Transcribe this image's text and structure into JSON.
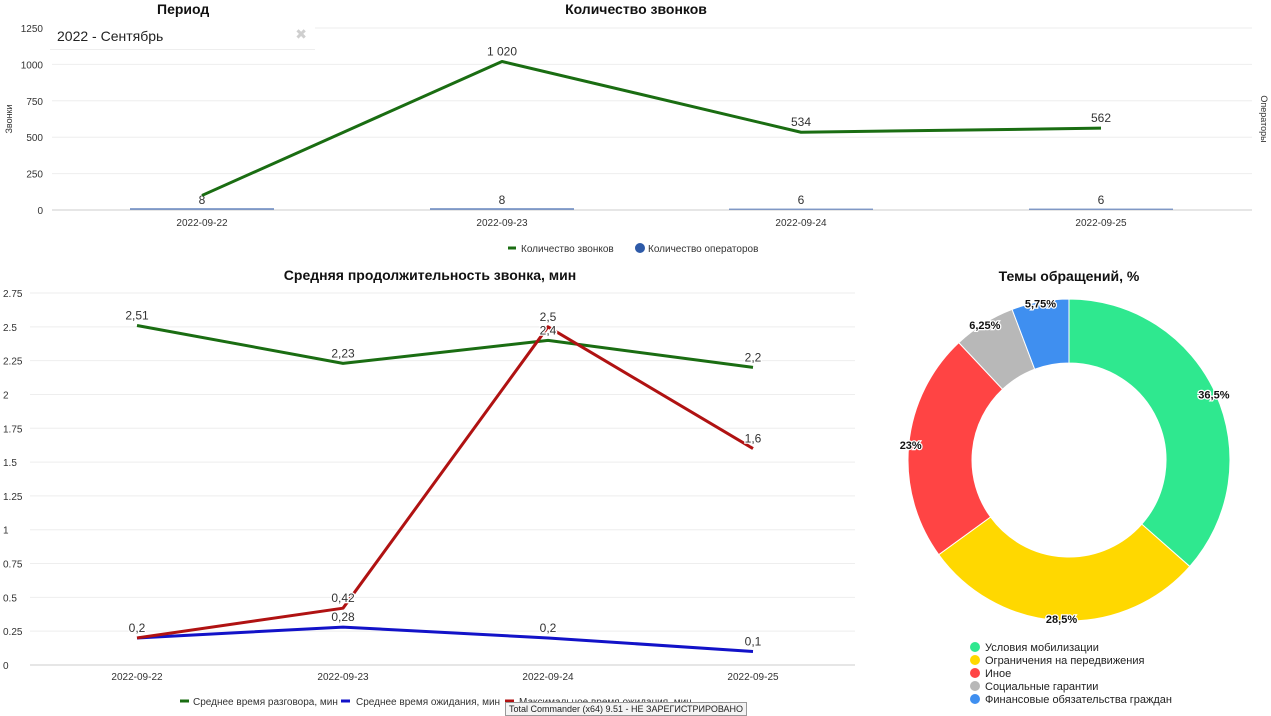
{
  "period": {
    "title": "Период",
    "value": "2022 - Сентябрь",
    "clear_icon": "close-icon",
    "clear_glyph": "✖"
  },
  "tooltip": {
    "text": "Total Commander (x64) 9.51 - НЕ ЗАРЕГИСТРИРОВАНО"
  },
  "colors": {
    "calls": "#1a6d12",
    "operators": "#2e5aa8",
    "talk": "#1a6d12",
    "wait": "#1212c8",
    "maxwait": "#b01212"
  },
  "chart_data": [
    {
      "type": "line",
      "title": "Количество звонков",
      "categories": [
        "2022-09-22",
        "2022-09-23",
        "2022-09-24",
        "2022-09-25"
      ],
      "ylabel": "Звонки",
      "y2label": "Операторы",
      "ylim": [
        0,
        1250
      ],
      "yticks": [
        0,
        250,
        500,
        750,
        1000,
        1250
      ],
      "ytick_labels": [
        "0",
        "250",
        "500",
        "750",
        "1000",
        "1250"
      ],
      "series": [
        {
          "name": "Количество звонков",
          "type": "line",
          "values": [
            100,
            1020,
            534,
            562
          ],
          "labels": [
            "",
            "1 020",
            "534",
            "562"
          ]
        },
        {
          "name": "Количество операторов",
          "type": "bar",
          "axis": "right",
          "values": [
            8,
            8,
            6,
            6
          ],
          "labels": [
            "8",
            "8",
            "6",
            "6"
          ]
        }
      ],
      "legend": "bottom",
      "grid": true
    },
    {
      "type": "line",
      "title": "Средняя продолжительность звонка, мин",
      "categories": [
        "2022-09-22",
        "2022-09-23",
        "2022-09-24",
        "2022-09-25"
      ],
      "ylim": [
        0,
        2.75
      ],
      "yticks": [
        0,
        0.25,
        0.5,
        0.75,
        1,
        1.25,
        1.5,
        1.75,
        2,
        2.25,
        2.5,
        2.75
      ],
      "ytick_labels": [
        "0",
        "0.25",
        "0.5",
        "0.75",
        "1",
        "1.25",
        "1.5",
        "1.75",
        "2",
        "2.25",
        "2.5",
        "2.75"
      ],
      "series": [
        {
          "name": "Среднее время разговора, мин",
          "values": [
            2.51,
            2.23,
            2.4,
            2.2
          ],
          "labels": [
            "2,51",
            "2,23",
            "2,4",
            "2,2"
          ]
        },
        {
          "name": "Среднее время ожидания, мин",
          "values": [
            0.2,
            0.28,
            0.2,
            0.1
          ],
          "labels": [
            "0,2",
            "0,28",
            "0,2",
            "0,1"
          ]
        },
        {
          "name": "Максимальное время ожидания, мин",
          "values": [
            0.2,
            0.42,
            2.5,
            1.6
          ],
          "labels": [
            "",
            "0,42",
            "2,5",
            "1,6"
          ]
        }
      ],
      "legend": "bottom",
      "grid": true
    },
    {
      "type": "pie",
      "title": "Темы обращений, %",
      "slices": [
        {
          "name": "Условия мобилизации",
          "value": 36.5,
          "label": "36,5%",
          "color": "#2fe88f"
        },
        {
          "name": "Ограничения на передвижения",
          "value": 28.5,
          "label": "28,5%",
          "color": "#ffd800"
        },
        {
          "name": "Иное",
          "value": 23,
          "label": "23%",
          "color": "#ff4444"
        },
        {
          "name": "Социальные гарантии",
          "value": 6.25,
          "label": "6,25%",
          "color": "#b8b8b8"
        },
        {
          "name": "Финансовые обязательства граждан",
          "value": 5.75,
          "label": "5,75%",
          "color": "#3f8ff0"
        }
      ],
      "legend": "bottom"
    }
  ]
}
